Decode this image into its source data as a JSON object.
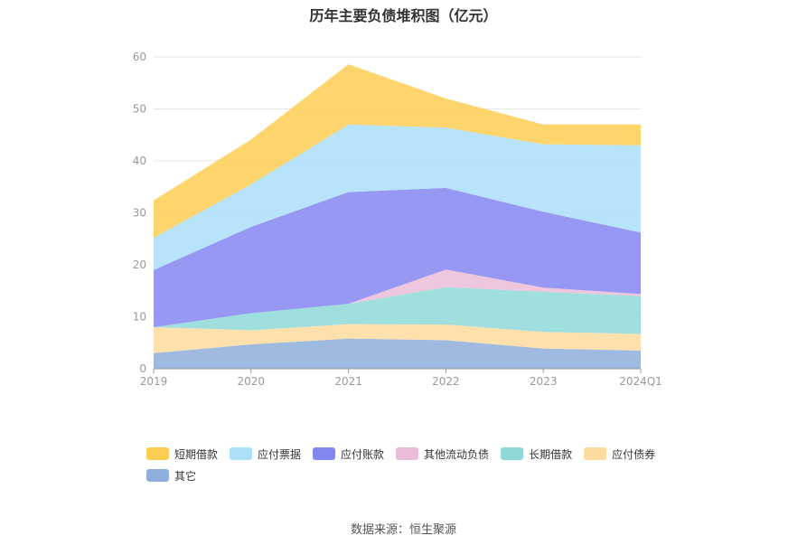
{
  "source": "数据来源：恒生聚源",
  "chart_data": {
    "type": "area",
    "stacked": true,
    "title": "历年主要负债堆积图（亿元）",
    "x": [
      "2019",
      "2020",
      "2021",
      "2022",
      "2023",
      "2024Q1"
    ],
    "ylim": [
      0,
      60
    ],
    "yticks": [
      0,
      10,
      20,
      30,
      40,
      50,
      60
    ],
    "grid": true,
    "legend_position": "bottom",
    "series": [
      {
        "name": "其它",
        "color": "#8eaedc",
        "values": [
          3.0,
          4.7,
          5.8,
          5.5,
          3.9,
          3.5
        ]
      },
      {
        "name": "应付债券",
        "color": "#fddb9e",
        "values": [
          5.0,
          2.7,
          2.8,
          3.0,
          3.2,
          3.2
        ]
      },
      {
        "name": "长期借款",
        "color": "#8ed9d8",
        "values": [
          0.0,
          3.3,
          3.9,
          7.2,
          7.7,
          7.3
        ]
      },
      {
        "name": "其他流动负债",
        "color": "#ebbcd8",
        "values": [
          0.0,
          0.0,
          0.0,
          3.4,
          0.8,
          0.4
        ]
      },
      {
        "name": "应付账款",
        "color": "#8486f2",
        "values": [
          11.0,
          16.6,
          21.5,
          15.7,
          14.6,
          11.8
        ]
      },
      {
        "name": "应付票据",
        "color": "#acdffa",
        "values": [
          6.2,
          8.2,
          13.0,
          11.6,
          13.0,
          16.8
        ]
      },
      {
        "name": "短期借款",
        "color": "#fece52",
        "values": [
          7.2,
          8.6,
          11.6,
          5.6,
          3.8,
          4.0
        ]
      }
    ],
    "legend_order": [
      "短期借款",
      "应付票据",
      "应付账款",
      "其他流动负债",
      "长期借款",
      "应付债券",
      "其它"
    ]
  }
}
